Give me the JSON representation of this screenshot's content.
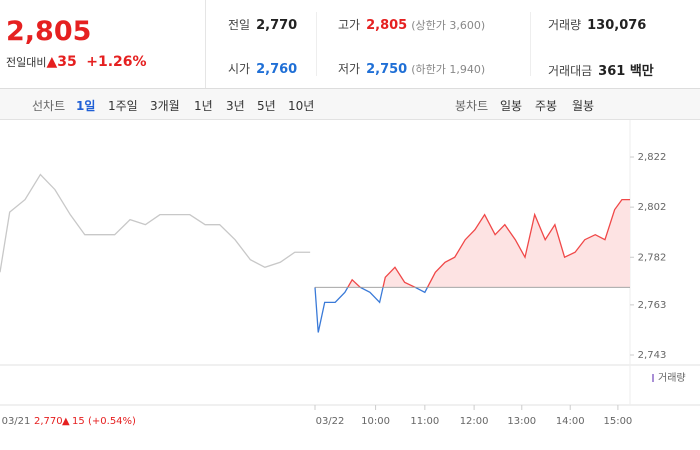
{
  "header": {
    "price": "2,805",
    "change_label": "전일대비",
    "change": "35",
    "change_pct": "+1.26%",
    "stats": [
      [
        {
          "label": "전일",
          "value": "2,770"
        },
        {
          "label": "고가",
          "value": "2,805",
          "note": "(상한가 3,600)"
        },
        {
          "label": "거래량",
          "value": "130,076"
        }
      ],
      [
        {
          "label": "시가",
          "value": "2,760"
        },
        {
          "label": "저가",
          "value": "2,750",
          "note": "(하한가 1,940)"
        },
        {
          "label": "거래대금",
          "value": "361 백만"
        }
      ]
    ]
  },
  "tabs": {
    "line_label": "선차트",
    "line": [
      "1일",
      "1주일",
      "3개월",
      "1년",
      "3년",
      "5년",
      "10년"
    ],
    "candle_label": "봉차트",
    "candle": [
      "일봉",
      "주봉",
      "월봉"
    ]
  },
  "footer": {
    "date": "03/21",
    "price": "2,770",
    "change": "15",
    "pct": "(+0.54%)"
  },
  "chart_data": {
    "type": "line",
    "volume_label": "거래량",
    "baseline": 2770,
    "xlim": [
      0,
      780
    ],
    "ylim": [
      2740,
      2826
    ],
    "yticks": [
      {
        "value": 2822,
        "label": "2,822"
      },
      {
        "value": 2802,
        "label": "2,802"
      },
      {
        "value": 2782,
        "label": "2,782"
      },
      {
        "value": 2763,
        "label": "2,763"
      },
      {
        "value": 2743,
        "label": "2,743"
      }
    ],
    "xticks": [
      {
        "value": 390,
        "label": "03/22"
      },
      {
        "value": 465,
        "label": "10:00"
      },
      {
        "value": 526,
        "label": "11:00"
      },
      {
        "value": 587,
        "label": "12:00"
      },
      {
        "value": 646,
        "label": "13:00"
      },
      {
        "value": 706,
        "label": "14:00"
      },
      {
        "value": 765,
        "label": "15:00"
      }
    ],
    "series": [
      {
        "color": "#c8c8c8",
        "x": [
          0,
          12,
          31,
          50,
          68,
          87,
          105,
          124,
          142,
          161,
          180,
          198,
          217,
          235,
          254,
          272,
          291,
          310,
          328,
          347,
          365,
          384
        ],
        "values": [
          2776,
          2800,
          2805,
          2815,
          2809,
          2799,
          2791,
          2791,
          2791,
          2797,
          2795,
          2799,
          2799,
          2799,
          2795,
          2795,
          2789,
          2781,
          2778,
          2780,
          2784,
          2784
        ]
      },
      {
        "up_color": "#f04848",
        "down_color": "#3a7ad8",
        "fill": "#fde3e3",
        "x": [
          390,
          394,
          402,
          415,
          427,
          436,
          446,
          458,
          470,
          477,
          489,
          501,
          514,
          526,
          539,
          551,
          563,
          576,
          588,
          600,
          613,
          625,
          638,
          650,
          662,
          675,
          687,
          699,
          712,
          724,
          737,
          749,
          761,
          770,
          780
        ],
        "values": [
          2770,
          2752,
          2764,
          2764,
          2768,
          2773,
          2770,
          2768,
          2764,
          2774,
          2778,
          2772,
          2770,
          2768,
          2776,
          2780,
          2782,
          2789,
          2793,
          2799,
          2791,
          2795,
          2789,
          2782,
          2799,
          2789,
          2795,
          2782,
          2784,
          2789,
          2791,
          2789,
          2801,
          2805,
          2805
        ]
      }
    ]
  }
}
